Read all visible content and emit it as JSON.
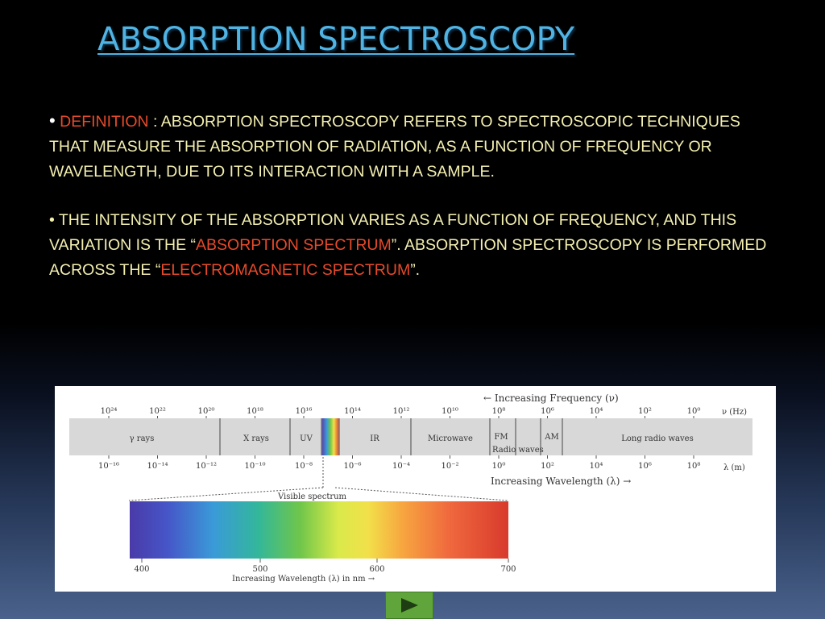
{
  "slide": {
    "title": "ABSORPTION SPECTROSCOPY",
    "definition": {
      "bullet": "•",
      "label": "DEFINITION",
      "text": " : ABSORPTION SPECTROSCOPY REFERS TO SPECTROSCOPIC TECHNIQUES THAT MEASURE THE ABSORPTION OF RADIATION, AS A FUNCTION OF FREQUENCY OR WAVELENGTH, DUE TO ITS INTERACTION WITH A SAMPLE."
    },
    "intensity": {
      "bullet": "•",
      "text1": " THE INTENSITY OF THE ABSORPTION VARIES AS A    FUNCTION OF FREQUENCY, AND THIS VARIATION IS THE “",
      "highlight1": "ABSORPTION SPECTRUM",
      "text2": "”. ABSORPTION SPECTROSCOPY IS PERFORMED ACROSS THE “",
      "highlight2": "ELECTROMAGNETIC SPECTRUM",
      "text3": "”."
    },
    "highlight_color": "#e84a2a",
    "text_color": "#f4f0b0",
    "title_color": "#4fb3e3"
  },
  "figure": {
    "frequency_label": "← Increasing Frequency (ν)",
    "frequency_unit": "ν (Hz)",
    "frequency_ticks": [
      "10²⁴",
      "10²²",
      "10²⁰",
      "10¹⁸",
      "10¹⁶",
      "10¹⁴",
      "10¹²",
      "10¹⁰",
      "10⁸",
      "10⁶",
      "10⁴",
      "10²",
      "10⁰"
    ],
    "bands": [
      "γ rays",
      "X rays",
      "UV",
      "IR",
      "Microwave",
      "FM",
      "AM",
      "Long radio waves"
    ],
    "radio_waves_label": "Radio waves",
    "wavelength_ticks": [
      "10⁻¹⁶",
      "10⁻¹⁴",
      "10⁻¹²",
      "10⁻¹⁰",
      "10⁻⁸",
      "10⁻⁶",
      "10⁻⁴",
      "10⁻²",
      "10⁰",
      "10²",
      "10⁴",
      "10⁶",
      "10⁸"
    ],
    "wavelength_unit": "λ (m)",
    "wavelength_label": "Increasing Wavelength (λ) →",
    "visible_title": "Visible spectrum",
    "visible_ticks": [
      "400",
      "500",
      "600",
      "700"
    ],
    "visible_axis_label": "Increasing Wavelength (λ) in nm →"
  },
  "nav": {
    "next_icon": "play-triangle-icon",
    "button_color": "#5fa53b"
  }
}
